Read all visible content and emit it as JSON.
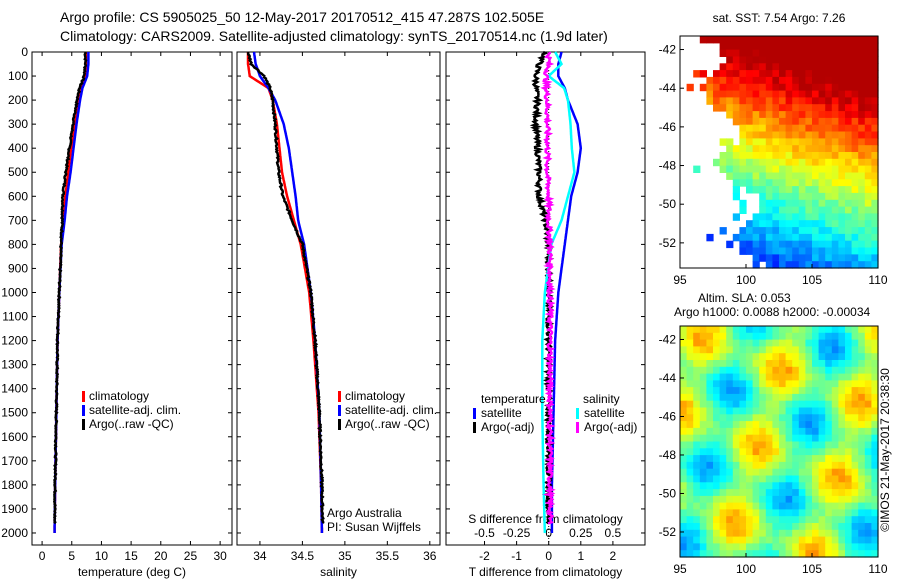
{
  "title": {
    "line1": "Argo profile: CS 5905025_50 12-May-2017 20170512_415 47.287S 102.505E",
    "line2": "Climatology: CARS2009. Satellite-adjusted climatology: synTS_20170514.nc (1.9d later)"
  },
  "credit": "©IMOS 21-May-2017 20:38:30",
  "colors": {
    "clim": "#ff0000",
    "sat": "#0000ff",
    "argo": "#000000",
    "sal_sat": "#00ffff",
    "sal_argo": "#ff00ff"
  },
  "chart_data": [
    {
      "type": "line",
      "name": "temperature-profile",
      "xlabel": "temperature (deg C)",
      "xlim": [
        -1.7,
        32
      ],
      "xticks": [
        "0",
        "5",
        "10",
        "15",
        "20",
        "25",
        "30"
      ],
      "ylim": [
        2050,
        0
      ],
      "yticks": [
        "0",
        "100",
        "200",
        "300",
        "400",
        "500",
        "600",
        "700",
        "800",
        "900",
        "1000",
        "1100",
        "1200",
        "1300",
        "1400",
        "1500",
        "1600",
        "1700",
        "1800",
        "1900",
        "2000"
      ],
      "depth": [
        0,
        50,
        100,
        150,
        200,
        300,
        400,
        500,
        600,
        700,
        800,
        1000,
        1200,
        1500,
        1800,
        2000
      ],
      "series": [
        {
          "name": "climatology",
          "color": "#ff0000",
          "values": [
            7.4,
            7.4,
            7.3,
            6.6,
            6.2,
            5.5,
            4.9,
            4.4,
            3.9,
            3.6,
            3.2,
            2.9,
            2.6,
            2.4,
            2.2,
            2.1
          ]
        },
        {
          "name": "satellite-adj. clim.",
          "color": "#0000ff",
          "values": [
            7.8,
            7.8,
            7.6,
            6.8,
            6.4,
            5.8,
            5.3,
            4.8,
            4.2,
            3.8,
            3.3,
            2.9,
            2.6,
            2.4,
            2.2,
            2.1
          ]
        },
        {
          "name": "Argo(..raw -QC)",
          "color": "#000000",
          "values": [
            7.3,
            7.3,
            7.1,
            6.3,
            5.9,
            5.2,
            4.6,
            4.0,
            3.5,
            3.4,
            3.2,
            2.9,
            2.6,
            2.4,
            2.2,
            2.1
          ]
        }
      ]
    },
    {
      "type": "line",
      "name": "salinity-profile",
      "xlabel": "salinity",
      "xlim": [
        33.73,
        36.12
      ],
      "xticks": [
        "34",
        "34.5",
        "35",
        "35.5",
        "36"
      ],
      "ylim": [
        2050,
        0
      ],
      "depth": [
        0,
        50,
        100,
        150,
        200,
        300,
        400,
        500,
        600,
        700,
        800,
        1000,
        1200,
        1500,
        1800,
        2000
      ],
      "annotation": [
        "Argo Australia",
        "PI: Susan Wijffels"
      ],
      "series": [
        {
          "name": "climatology",
          "color": "#ff0000",
          "values": [
            33.86,
            33.86,
            33.88,
            34.1,
            34.15,
            34.2,
            34.23,
            34.26,
            34.32,
            34.4,
            34.48,
            34.58,
            34.63,
            34.69,
            34.72,
            34.73
          ]
        },
        {
          "name": "satellite-adj. clim.",
          "color": "#0000ff",
          "values": [
            33.93,
            33.95,
            34.0,
            34.1,
            34.18,
            34.28,
            34.34,
            34.38,
            34.42,
            34.45,
            34.52,
            34.6,
            34.65,
            34.7,
            34.72,
            34.73
          ]
        },
        {
          "name": "Argo(..raw -QC)",
          "color": "#000000",
          "values": [
            33.86,
            33.9,
            34.05,
            34.12,
            34.15,
            34.18,
            34.2,
            34.22,
            34.27,
            34.38,
            34.5,
            34.6,
            34.65,
            34.7,
            34.73,
            34.74
          ]
        }
      ]
    },
    {
      "type": "line",
      "name": "difference-profile",
      "xlabel": "T difference from climatology",
      "xlabel2": "S difference from climatology",
      "xlim": [
        -3.2,
        3.0
      ],
      "xticks": [
        "-2",
        "-1",
        "0",
        "1",
        "2"
      ],
      "xticks2": [
        "-0.5",
        "-0.25",
        "0",
        "0.25",
        "0.5"
      ],
      "ylim": [
        2050,
        0
      ],
      "depth": [
        0,
        50,
        100,
        150,
        200,
        300,
        400,
        500,
        600,
        700,
        800,
        1000,
        1200,
        1500,
        1800,
        2000
      ],
      "legend_headers": [
        "temperature",
        "salinity"
      ],
      "series": [
        {
          "name": "satellite",
          "group": "temperature",
          "color": "#0000ff",
          "values": [
            0.4,
            0.3,
            0.3,
            0.5,
            0.6,
            0.9,
            1.0,
            0.9,
            0.7,
            0.6,
            0.5,
            0.3,
            0.2,
            0.15,
            0.1,
            0.1
          ]
        },
        {
          "name": "Argo(-adj)",
          "group": "temperature",
          "color": "#000000",
          "values": [
            -0.1,
            -0.3,
            -0.4,
            -0.4,
            -0.35,
            -0.4,
            -0.35,
            -0.3,
            -0.3,
            -0.1,
            0,
            0,
            0,
            0,
            0,
            0
          ]
        },
        {
          "name": "satellite",
          "group": "salinity",
          "color": "#00ffff",
          "values": [
            0.05,
            0.1,
            0.0,
            0.12,
            0.15,
            0.17,
            0.18,
            0.2,
            0.15,
            0.1,
            0.02,
            -0.03,
            -0.05,
            -0.05,
            -0.04,
            -0.03
          ]
        },
        {
          "name": "Argo(-adj)",
          "group": "salinity",
          "color": "#ff00ff",
          "values": [
            0,
            0,
            -0.02,
            -0.02,
            -0.01,
            -0.01,
            -0.01,
            -0.01,
            0,
            0,
            0.01,
            0.01,
            0.01,
            0.01,
            0.01,
            0.01
          ]
        }
      ]
    },
    {
      "type": "heatmap",
      "name": "sst-map",
      "title": "sat. SST: 7.54 Argo: 7.26",
      "xlim": [
        95,
        110
      ],
      "ylim": [
        -53.3,
        -41.3
      ],
      "xticks": [
        "95",
        "100",
        "105",
        "110"
      ],
      "yticks": [
        "-42",
        "-44",
        "-46",
        "-48",
        "-50",
        "-52"
      ]
    },
    {
      "type": "heatmap",
      "name": "sla-map",
      "title": "Altim. SLA: 0.053",
      "subtitle": "Argo h1000: 0.0088 h2000: -0.00034",
      "xlim": [
        95,
        110
      ],
      "ylim": [
        -53.3,
        -41.3
      ],
      "xticks": [
        "95",
        "100",
        "105",
        "110"
      ],
      "yticks": [
        "-42",
        "-44",
        "-46",
        "-48",
        "-50",
        "-52"
      ]
    }
  ]
}
